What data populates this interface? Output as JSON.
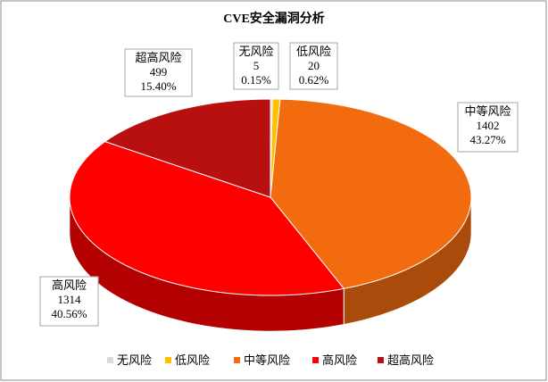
{
  "chart_data": {
    "type": "pie3d",
    "title": "CVE安全漏洞分析",
    "categories": [
      "无风险",
      "低风险",
      "中等风险",
      "高风险",
      "超高风险"
    ],
    "values": [
      5,
      20,
      1402,
      1314,
      499
    ],
    "percent_labels": [
      "0.15%",
      "0.62%",
      "43.27%",
      "40.56%",
      "15.40%"
    ],
    "colors": [
      "#d9d9d9",
      "#ffc000",
      "#f26b0f",
      "#ff0000",
      "#b80f0f"
    ],
    "legend": "bottom"
  }
}
